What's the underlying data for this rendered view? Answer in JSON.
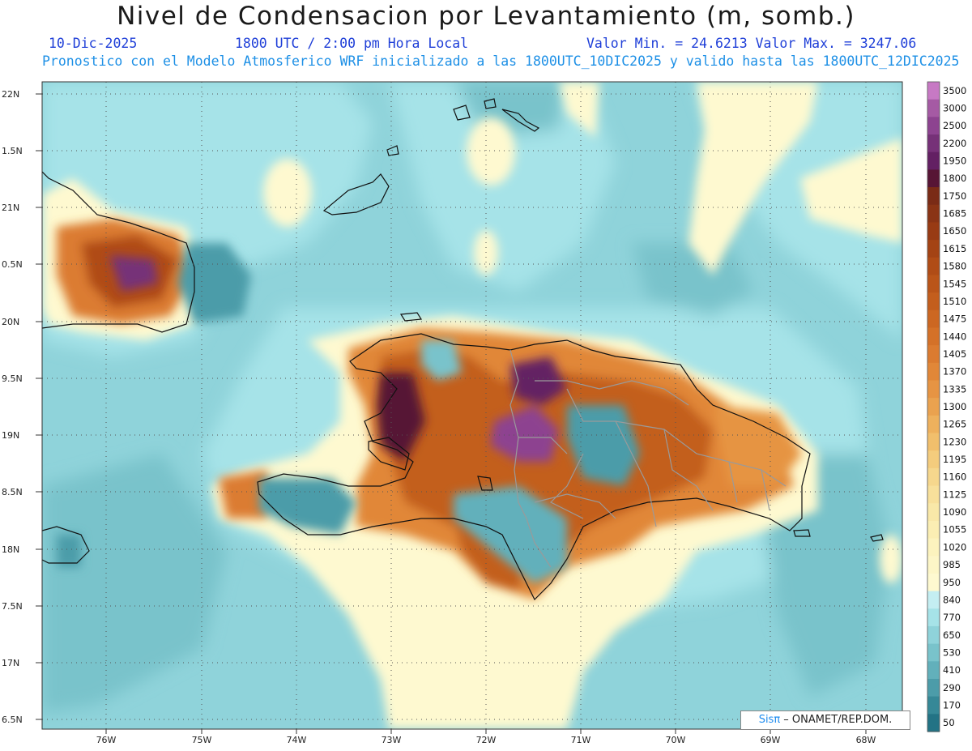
{
  "header": {
    "title": "Nivel de Condensacion por Levantamiento (m, somb.)",
    "date": "10-Dic-2025",
    "time": "1800 UTC / 2:00 pm Hora Local",
    "min_max": "Valor Min. = 24.6213  Valor Max. = 3247.06",
    "description": "Pronostico con el Modelo Atmosferico WRF inicializado a las 1800UTC_10DIC2025 y valido hasta las  1800UTC_12DIC2025"
  },
  "axes": {
    "lat_labels": [
      "22N",
      "1.5N",
      "21N",
      "0.5N",
      "20N",
      "9.5N",
      "19N",
      "8.5N",
      "18N",
      "7.5N",
      "17N",
      "6.5N"
    ],
    "lon_labels": [
      "76W",
      "75W",
      "74W",
      "73W",
      "72W",
      "71W",
      "70W",
      "69W",
      "68W"
    ]
  },
  "colorbar": {
    "labels": [
      "3500",
      "3000",
      "2500",
      "2200",
      "1950",
      "1800",
      "1750",
      "1685",
      "1650",
      "1615",
      "1580",
      "1545",
      "1510",
      "1475",
      "1440",
      "1405",
      "1370",
      "1335",
      "1300",
      "1265",
      "1230",
      "1195",
      "1160",
      "1125",
      "1090",
      "1055",
      "1020",
      "985",
      "950",
      "840",
      "770",
      "650",
      "530",
      "410",
      "290",
      "170",
      "50"
    ],
    "colors": [
      "#c779c4",
      "#a55aa4",
      "#8d4390",
      "#763178",
      "#632063",
      "#571535",
      "#7a2b16",
      "#8a3415",
      "#983b14",
      "#a44314",
      "#b04c16",
      "#ba5519",
      "#c35e1d",
      "#cc6722",
      "#d47128",
      "#db7b30",
      "#e18738",
      "#e69443",
      "#eaa24f",
      "#eeb15d",
      "#f1bf6c",
      "#f4cc7d",
      "#f6d78d",
      "#f8e09b",
      "#f9e8a8",
      "#fbeeb3",
      "#fcf3be",
      "#fdf6c7",
      "#fef9d0",
      "#c4eef2",
      "#a6e3e8",
      "#8fd3da",
      "#79c3cb",
      "#62b0bb",
      "#4c9ca9",
      "#368897",
      "#237385"
    ]
  },
  "credit": {
    "logo": "Sisπ",
    "text": " – ONAMET/REP.DOM."
  }
}
